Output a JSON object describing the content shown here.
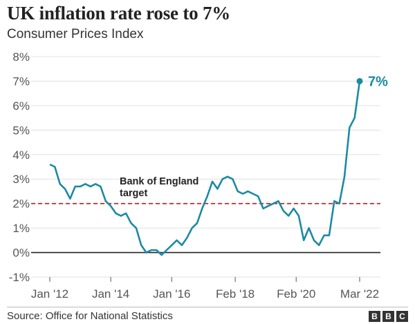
{
  "header": {
    "title": "UK inflation rate rose to 7%",
    "subtitle": "Consumer Prices Index"
  },
  "footer": {
    "source": "Source: Office for National Statistics",
    "logo_letters": [
      "B",
      "B",
      "C"
    ]
  },
  "colors": {
    "line": "#1b8aa3",
    "target": "#c0171b",
    "zero": "#222222",
    "grid": "#e0e0e0"
  },
  "chart_data": {
    "type": "line",
    "title": "UK inflation rate rose to 7%",
    "subtitle": "Consumer Prices Index",
    "ylim": [
      -1,
      8
    ],
    "y_ticks": [
      "8%",
      "7%",
      "6%",
      "5%",
      "4%",
      "3%",
      "2%",
      "1%",
      "0%",
      "-1%"
    ],
    "y_tick_values": [
      8,
      7,
      6,
      5,
      4,
      3,
      2,
      1,
      0,
      -1
    ],
    "x_tick_labels": [
      "Jan '12",
      "Jan '14",
      "Jan '16",
      "Feb '18",
      "Feb '20",
      "Mar '22"
    ],
    "x_tick_dates": [
      "2012-01",
      "2014-01",
      "2016-01",
      "2018-02",
      "2020-02",
      "2022-03"
    ],
    "grid": "horizontal",
    "target": {
      "value": 2,
      "label": "Bank of England target"
    },
    "end_label": "7%",
    "series": [
      {
        "x": [
          "2012-01",
          "2012-03",
          "2012-05",
          "2012-07",
          "2012-09",
          "2012-11",
          "2013-01",
          "2013-03",
          "2013-05",
          "2013-07",
          "2013-09",
          "2013-11",
          "2014-01",
          "2014-03",
          "2014-05",
          "2014-07",
          "2014-09",
          "2014-11",
          "2015-01",
          "2015-03",
          "2015-05",
          "2015-07",
          "2015-09",
          "2015-11",
          "2016-01",
          "2016-03",
          "2016-05",
          "2016-07",
          "2016-09",
          "2016-11",
          "2017-01",
          "2017-03",
          "2017-05",
          "2017-07",
          "2017-09",
          "2017-11",
          "2018-01",
          "2018-03",
          "2018-05",
          "2018-07",
          "2018-09",
          "2018-11",
          "2019-01",
          "2019-03",
          "2019-05",
          "2019-07",
          "2019-09",
          "2019-11",
          "2020-01",
          "2020-03",
          "2020-05",
          "2020-07",
          "2020-09",
          "2020-11",
          "2021-01",
          "2021-03",
          "2021-05",
          "2021-07",
          "2021-09",
          "2021-11",
          "2022-01",
          "2022-03"
        ],
        "values": [
          3.6,
          3.5,
          2.8,
          2.6,
          2.2,
          2.7,
          2.7,
          2.8,
          2.7,
          2.8,
          2.7,
          2.1,
          1.9,
          1.6,
          1.5,
          1.6,
          1.2,
          1.0,
          0.3,
          0.0,
          0.1,
          0.1,
          -0.1,
          0.1,
          0.3,
          0.5,
          0.3,
          0.6,
          1.0,
          1.2,
          1.8,
          2.3,
          2.9,
          2.6,
          3.0,
          3.1,
          3.0,
          2.5,
          2.4,
          2.5,
          2.4,
          2.3,
          1.8,
          1.9,
          2.0,
          2.1,
          1.7,
          1.5,
          1.8,
          1.5,
          0.5,
          1.0,
          0.5,
          0.3,
          0.7,
          0.7,
          2.1,
          2.0,
          3.1,
          5.1,
          5.5,
          7.0
        ]
      }
    ]
  }
}
